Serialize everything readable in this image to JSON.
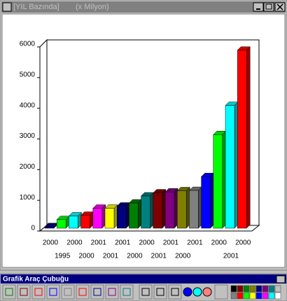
{
  "window": {
    "title": "[YIL Bazında]",
    "subtitle": "(x Milyon)"
  },
  "toolbar": {
    "title": "Grafik Araç Çubuğu"
  },
  "chart_data": {
    "type": "bar3d",
    "categories": [
      "2000",
      "1995",
      "2000",
      "2000",
      "2001",
      "2001",
      "2001",
      "2000",
      "2000",
      "2001",
      "2001",
      "2000",
      "2001",
      null,
      "2000",
      "2001",
      "2000"
    ],
    "values": [
      50,
      280,
      400,
      420,
      650,
      650,
      720,
      820,
      1050,
      1150,
      1180,
      1220,
      1230,
      1680,
      3050,
      4000,
      5800
    ],
    "colors": [
      "#000080",
      "#00ff00",
      "#00ffff",
      "#ff0000",
      "#ff00ff",
      "#ffff00",
      "#000080",
      "#008000",
      "#008080",
      "#800000",
      "#800080",
      "#808000",
      "#808080",
      "#0000ff",
      "#00ff00",
      "#00ffff",
      "#ff0000"
    ],
    "ylim": [
      0,
      6000
    ],
    "yticks": [
      0,
      1000,
      2000,
      3000,
      4000,
      5000,
      6000
    ]
  }
}
